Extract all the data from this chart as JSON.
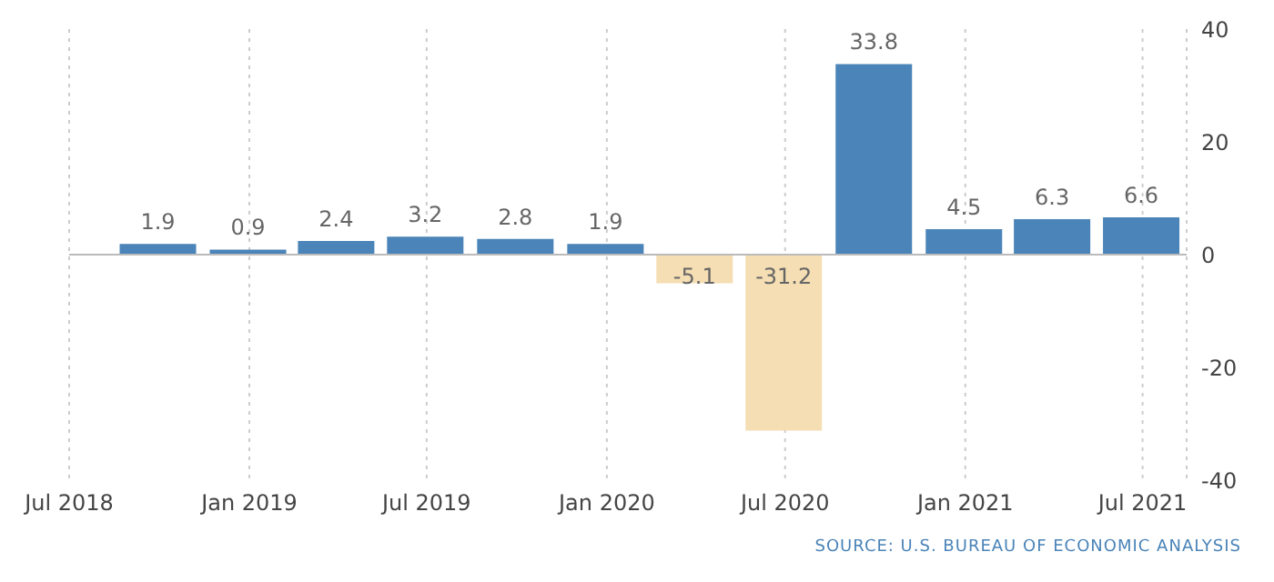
{
  "chart_data": {
    "type": "bar",
    "x": [
      "2018-09-30",
      "2018-12-31",
      "2019-03-31",
      "2019-06-30",
      "2019-09-30",
      "2019-12-31",
      "2020-03-31",
      "2020-06-30",
      "2020-09-30",
      "2020-12-31",
      "2021-03-31",
      "2021-06-30"
    ],
    "values": [
      1.9,
      0.9,
      2.4,
      3.2,
      2.8,
      1.9,
      -5.1,
      -31.2,
      33.8,
      4.5,
      6.3,
      6.6
    ],
    "colors": [
      "#4a84b8",
      "#4a84b8",
      "#4a84b8",
      "#4a84b8",
      "#4a84b8",
      "#4a84b8",
      "#f5deb3",
      "#f5deb3",
      "#4a84b8",
      "#4a84b8",
      "#4a84b8",
      "#4a84b8"
    ],
    "data_labels": true,
    "xlim": [
      "2018-07-01",
      "2021-08-15"
    ],
    "xticks": [
      {
        "value": "2018-07-01",
        "label": "Jul 2018"
      },
      {
        "value": "2019-01-01",
        "label": "Jan 2019"
      },
      {
        "value": "2019-07-01",
        "label": "Jul 2019"
      },
      {
        "value": "2020-01-01",
        "label": "Jan 2020"
      },
      {
        "value": "2020-07-01",
        "label": "Jul 2020"
      },
      {
        "value": "2021-01-01",
        "label": "Jan 2021"
      },
      {
        "value": "2021-07-01",
        "label": "Jul 2021"
      }
    ],
    "ylim": [
      -40,
      40
    ],
    "yticks": [
      -40,
      -20,
      0,
      20,
      40
    ],
    "grid": "x",
    "ref_lines": [
      {
        "axis": "y",
        "value": 0,
        "color": "#bbbbbb"
      }
    ],
    "annotations": [
      "SOURCE: U.S. BUREAU OF ECONOMIC ANALYSIS"
    ]
  }
}
